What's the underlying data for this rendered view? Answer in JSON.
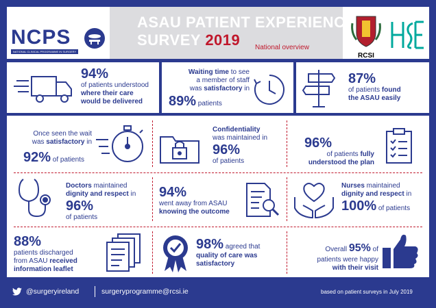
{
  "header": {
    "ncps_logo": "NCPS",
    "ncps_sub": "NATIONAL CLINICAL PROGRAMME IN SURGERY",
    "title_line1": "ASAU PATIENT EXPERIENCE",
    "title_line2": "SURVEY",
    "year": "2019",
    "subtitle": "National overview",
    "rcsi_label": "RCSI"
  },
  "cards": {
    "c1": {
      "pct": "94%",
      "l1": "of patients understood",
      "l2": "where their care",
      "l3": "would be delivered",
      "icon": "delivery-truck-icon"
    },
    "c2": {
      "l1a": "Waiting time",
      "l1b": " to see",
      "l2": "a member of staff",
      "l3a": "was ",
      "l3b": "satisfactory",
      "l3c": " in",
      "pct": "89%",
      "tail": " patients",
      "icon": "clock-icon"
    },
    "c3": {
      "pct": "87%",
      "l1a": "of patients ",
      "l1b": "found",
      "l2": "the ASAU easily",
      "icon": "signpost-icon"
    },
    "c4": {
      "l1": "Once seen the wait",
      "l2a": "was ",
      "l2b": "satisfactory",
      "l2c": " in",
      "pct": "92%",
      "tail": " of patients",
      "icon": "stopwatch-icon"
    },
    "c5": {
      "l1": "Confidentiality",
      "l2": "was maintained in",
      "pct": "96%",
      "l3": "of patients",
      "icon": "locked-folder-icon"
    },
    "c6": {
      "pct": "96%",
      "l1a": "of patients ",
      "l1b": "fully",
      "l2": "understood the plan",
      "icon": "clipboard-checklist-icon"
    },
    "c7": {
      "l1a": "Doctors",
      "l1b": " maintained",
      "l2": "dignity and respect",
      "l2b": " in",
      "pct": "96%",
      "l3": "of patients",
      "icon": "stethoscope-icon"
    },
    "c8": {
      "pct": "94%",
      "l1": "went away from ASAU",
      "l2": "knowing the outcome",
      "icon": "document-magnifier-icon"
    },
    "c9": {
      "l1a": "Nurses",
      "l1b": " maintained",
      "l2": "dignity and respect",
      "l2b": " in",
      "pct": "100%",
      "tail": " of patients",
      "icon": "hands-heart-icon"
    },
    "c10": {
      "pct": "88%",
      "l1": "patients discharged",
      "l2a": "from ASAU ",
      "l2b": "received",
      "l3": "information leaflet",
      "icon": "leaflets-icon"
    },
    "c11": {
      "pct": "98%",
      "l1a": " agreed that",
      "l2": "quality of care was",
      "l3": "satisfactory",
      "icon": "rosette-check-icon"
    },
    "c12": {
      "l1a": "Overall ",
      "pct": "95%",
      "l1c": " of",
      "l2": "patients were happy",
      "l3": "with their visit",
      "icon": "thumbs-up-icon"
    }
  },
  "footer": {
    "twitter": "@surgeryireland",
    "email": "surgeryprogramme@rcsi.ie",
    "note": "based on patient surveys in July 2019"
  },
  "colors": {
    "navy": "#2b3a8f",
    "red": "#c0182c",
    "grey": "#dcdcdf",
    "green": "#00a99d"
  }
}
